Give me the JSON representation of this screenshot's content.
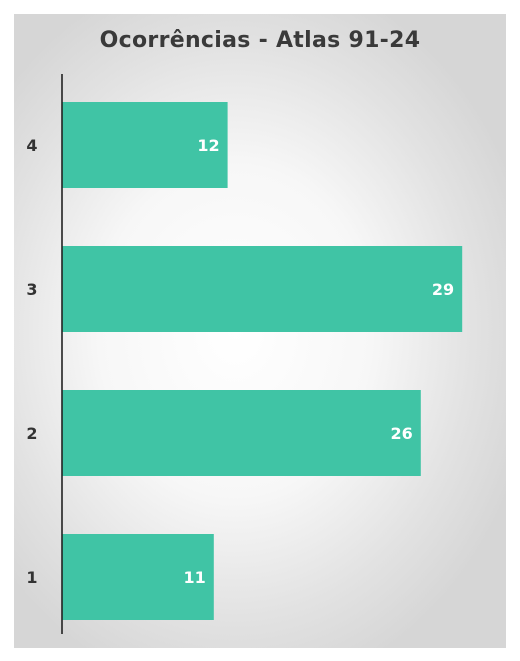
{
  "chart_data": {
    "type": "bar",
    "orientation": "horizontal",
    "title": "Ocorrências - Atlas 91-24",
    "categories": [
      "4",
      "3",
      "2",
      "1"
    ],
    "values": [
      12,
      29,
      26,
      11
    ],
    "xlim": [
      0,
      34
    ],
    "xlabel": "",
    "ylabel": "",
    "grid": false,
    "legend": "none",
    "data_labels": true,
    "bar_color": "#40c4a5",
    "label_color": "#ffffff",
    "axis_color": "#222222"
  }
}
